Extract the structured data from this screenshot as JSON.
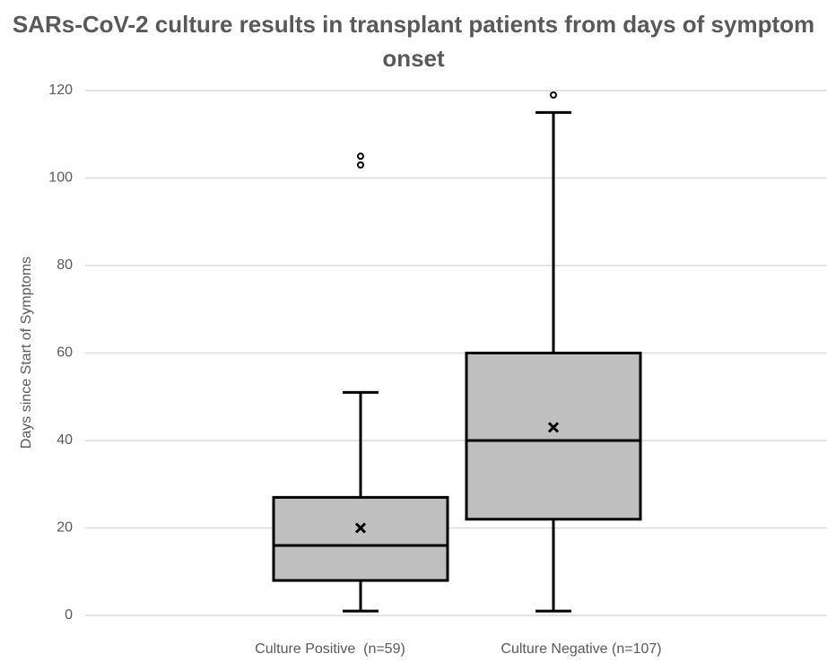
{
  "chart_data": {
    "type": "box",
    "title": "SARs-CoV-2 culture results in transplant patients from days of symptom onset",
    "y_label": "Days since Start of Symptoms",
    "categories": [
      "Culture Positive  (n=59)",
      "Culture Negative (n=107)"
    ],
    "boxes": [
      {
        "whisker_low": 1,
        "q1": 8,
        "median": 16,
        "q3": 27,
        "whisker_high": 51,
        "mean": 20,
        "outliers": [
          103,
          105
        ]
      },
      {
        "whisker_low": 1,
        "q1": 22,
        "median": 40,
        "q3": 60,
        "whisker_high": 115,
        "mean": 43,
        "outliers": [
          119
        ]
      }
    ],
    "color": "#bfbfbf",
    "ylim": [
      0,
      120
    ],
    "yticks": [
      0,
      20,
      40,
      60,
      80,
      100,
      120
    ],
    "grid": true
  }
}
